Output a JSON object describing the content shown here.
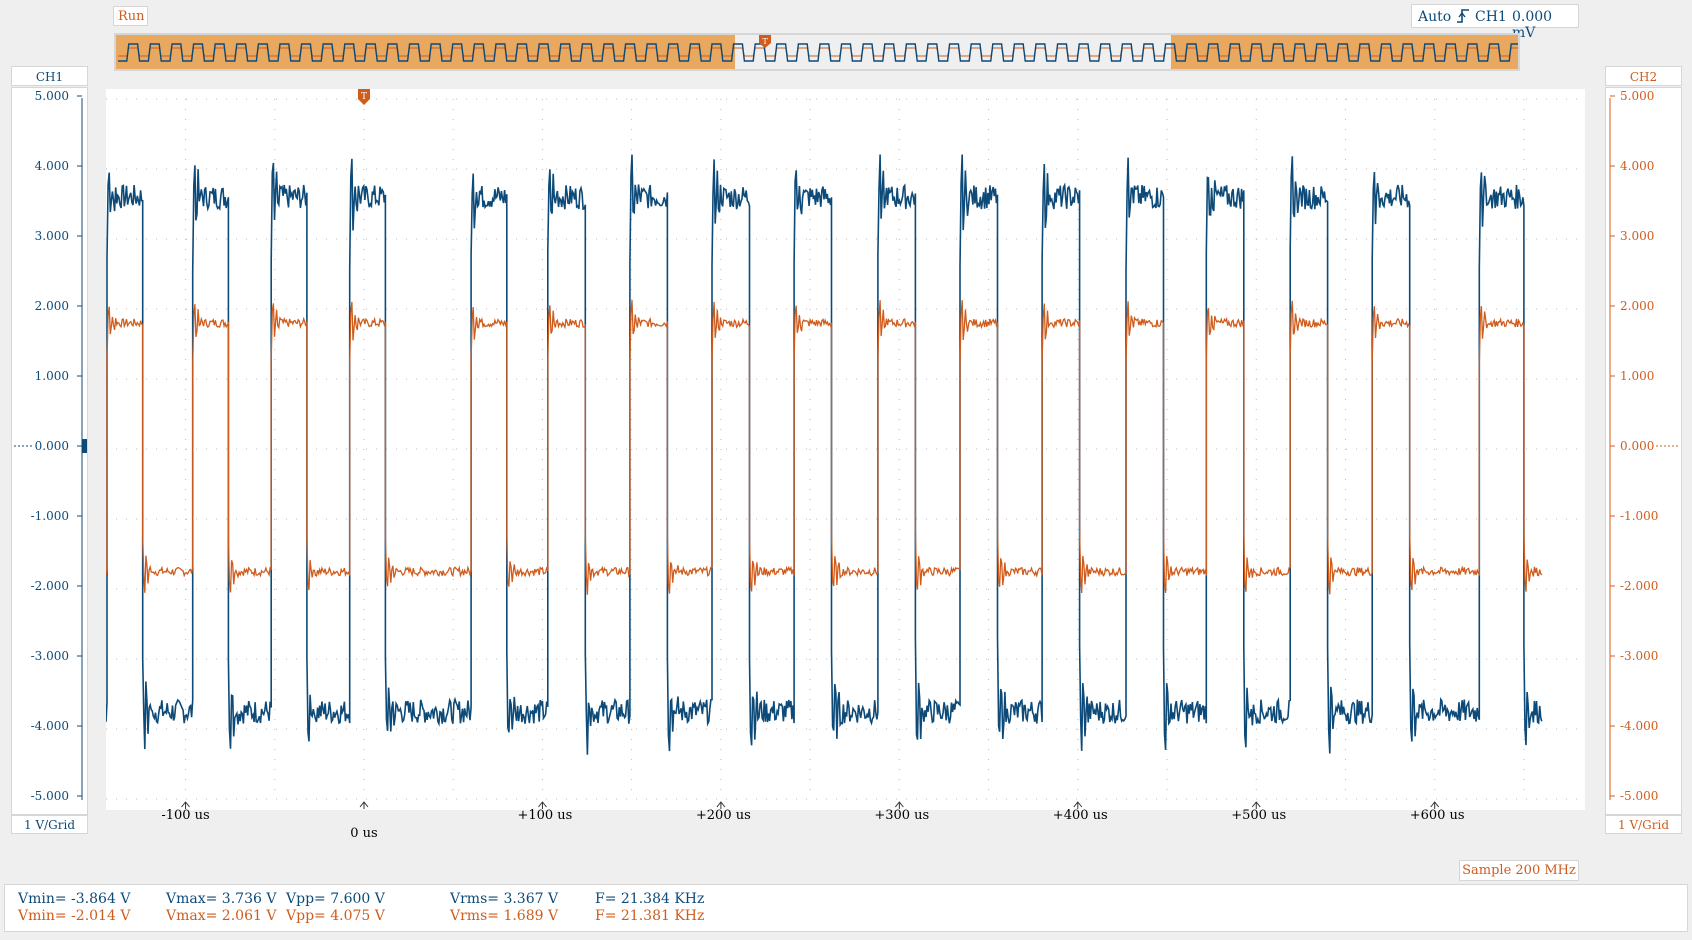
{
  "status": "Run",
  "trigger": {
    "mode": "Auto",
    "source": "CH1",
    "level": "0.000 mV",
    "icon": "rising-edge-icon",
    "marker": "T"
  },
  "ch1": {
    "name": "CH1",
    "scale": "1 V/Grid",
    "color": "#0d4a78",
    "ticks": [
      "5.000",
      "4.000",
      "3.000",
      "2.000",
      "1.000",
      "0.000",
      "-1.000",
      "-2.000",
      "-3.000",
      "-4.000",
      "-5.000"
    ]
  },
  "ch2": {
    "name": "CH2",
    "scale": "1 V/Grid",
    "color": "#d05c1c",
    "ticks": [
      "5.000",
      "4.000",
      "3.000",
      "2.000",
      "1.000",
      "0.000",
      "-1.000",
      "-2.000",
      "-3.000",
      "-4.000",
      "-5.000"
    ]
  },
  "time_axis": {
    "labels": [
      "-100 us",
      "0 us",
      "+100 us",
      "+200 us",
      "+300 us",
      "+400 us",
      "+500 us",
      "+600 us"
    ]
  },
  "sample": "Sample 200 MHz",
  "measurements": {
    "ch1": {
      "vmin": "Vmin= -3.864 V",
      "vmax": "Vmax= 3.736 V",
      "vpp": "Vpp= 7.600 V",
      "vrms": "Vrms= 3.367 V",
      "freq": "F= 21.384 KHz"
    },
    "ch2": {
      "vmin": "Vmin= -2.014 V",
      "vmax": "Vmax= 2.061 V",
      "vpp": "Vpp= 4.075 V",
      "vrms": "Vrms= 1.689 V",
      "freq": "F= 21.381 KHz"
    }
  },
  "chart_data": {
    "type": "line",
    "x_unit": "us",
    "xlim": [
      -160,
      660
    ],
    "ylim": [
      -5,
      5
    ],
    "ch1_levels": {
      "high": 3.6,
      "low": -3.75
    },
    "ch2_levels": {
      "high": 1.8,
      "low": -1.75
    },
    "edges_us": [
      -144,
      -124,
      -96,
      -76,
      -52,
      -32,
      -8,
      12,
      60,
      80,
      103,
      124,
      149,
      170,
      195,
      216,
      241,
      262,
      288,
      309,
      334,
      355,
      380,
      401,
      427,
      448,
      472,
      493,
      519,
      540,
      565,
      586,
      625,
      650
    ],
    "series": [
      {
        "name": "CH1",
        "color": "#0d4a78"
      },
      {
        "name": "CH2",
        "color": "#d05c1c"
      }
    ]
  }
}
